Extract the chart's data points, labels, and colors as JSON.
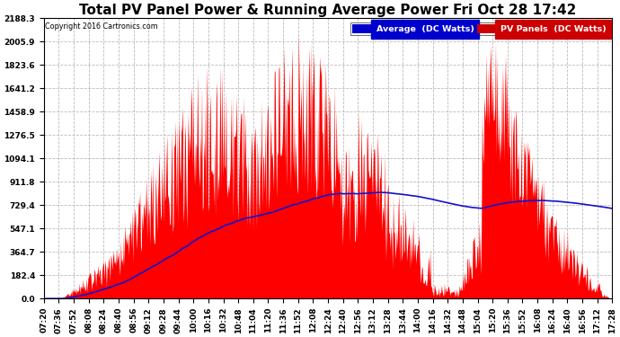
{
  "title": "Total PV Panel Power & Running Average Power Fri Oct 28 17:42",
  "copyright": "Copyright 2016 Cartronics.com",
  "legend_avg": "Average  (DC Watts)",
  "legend_pv": "PV Panels  (DC Watts)",
  "y_ticks": [
    0.0,
    182.4,
    364.7,
    547.1,
    729.4,
    911.8,
    1094.1,
    1276.5,
    1458.9,
    1641.2,
    1823.6,
    2005.9,
    2188.3
  ],
  "x_tick_labels": [
    "07:20",
    "07:36",
    "07:52",
    "08:08",
    "08:24",
    "08:40",
    "08:56",
    "09:12",
    "09:28",
    "09:44",
    "10:00",
    "10:16",
    "10:32",
    "10:48",
    "11:04",
    "11:20",
    "11:36",
    "11:52",
    "12:08",
    "12:24",
    "12:40",
    "12:56",
    "13:12",
    "13:28",
    "13:44",
    "14:00",
    "14:16",
    "14:32",
    "14:48",
    "15:04",
    "15:20",
    "15:36",
    "15:52",
    "16:08",
    "16:24",
    "16:40",
    "16:56",
    "17:12",
    "17:28"
  ],
  "bg_color": "#ffffff",
  "fill_color": "#ff0000",
  "avg_line_color": "#1111cc",
  "avg_legend_bg": "#0000cc",
  "pv_legend_bg": "#cc0000",
  "grid_color": "#bbbbbb",
  "title_fontsize": 11,
  "tick_fontsize": 6.5,
  "y_max": 2188.3,
  "y_min": 0.0
}
